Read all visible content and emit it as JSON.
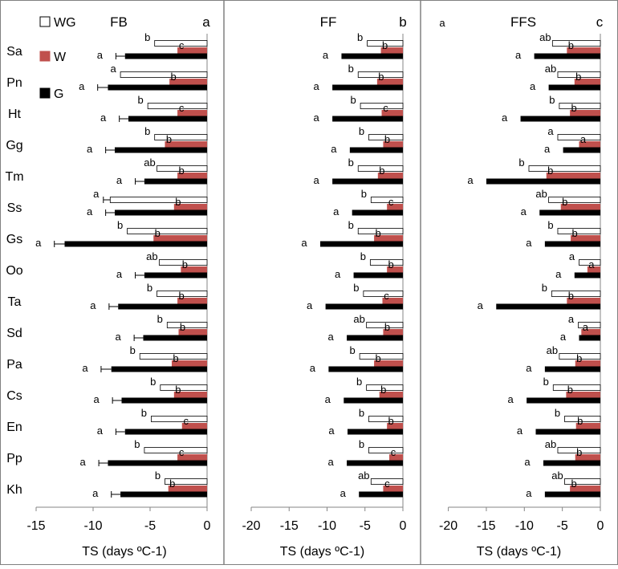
{
  "legend": [
    {
      "label": "WG",
      "color": "#ffffff"
    },
    {
      "label": "W",
      "color": "#c0504d"
    },
    {
      "label": "G",
      "color": "#000000"
    }
  ],
  "species": [
    "Sa",
    "Pn",
    "Ht",
    "Gg",
    "Tm",
    "Ss",
    "Gs",
    "Oo",
    "Ta",
    "Sd",
    "Pa",
    "Cs",
    "En",
    "Pp",
    "Kh"
  ],
  "colors": {
    "WG": "#ffffff",
    "W": "#c0504d",
    "G": "#000000",
    "frame": "#808080"
  },
  "chart_data": [
    {
      "type": "bar",
      "title": "FB",
      "panel_letter": "a",
      "xlabel": "TS (days ºC-1)",
      "xlim": [
        -15,
        0
      ],
      "xticks": [
        -15,
        -10,
        -5,
        0
      ],
      "categories": [
        "Sa",
        "Pn",
        "Ht",
        "Gg",
        "Tm",
        "Ss",
        "Gs",
        "Oo",
        "Ta",
        "Sd",
        "Pa",
        "Cs",
        "En",
        "Pp",
        "Kh"
      ],
      "series": [
        {
          "name": "WG",
          "values": [
            -4.6,
            -7.6,
            -5.2,
            -4.6,
            -4.4,
            -8.5,
            -7.0,
            -4.2,
            -4.4,
            -3.5,
            -5.9,
            -4.1,
            -4.9,
            -5.5,
            -3.7
          ]
        },
        {
          "name": "W",
          "values": [
            -2.6,
            -3.3,
            -2.6,
            -3.7,
            -2.6,
            -2.9,
            -4.7,
            -2.3,
            -2.6,
            -2.5,
            -3.1,
            -2.9,
            -2.2,
            -2.6,
            -3.4
          ]
        },
        {
          "name": "G",
          "values": [
            -7.2,
            -8.7,
            -6.9,
            -8.1,
            -5.5,
            -8.1,
            -12.5,
            -5.5,
            -7.8,
            -5.6,
            -8.4,
            -7.5,
            -7.2,
            -8.7,
            -7.6
          ]
        }
      ],
      "errors": {
        "WG": [
          0,
          0,
          0,
          0,
          0,
          0.6,
          0,
          0,
          0,
          0,
          0,
          0,
          0,
          0,
          0
        ],
        "W": [
          0,
          0,
          0,
          0,
          0,
          0,
          0,
          0,
          0,
          0,
          0,
          0,
          0,
          0,
          0
        ],
        "G": [
          0.8,
          0.9,
          0.8,
          0.8,
          0.8,
          0.8,
          0.9,
          0.8,
          0.8,
          0.8,
          0.9,
          0.8,
          0.8,
          0.8,
          0.8
        ]
      },
      "letters": {
        "WG": [
          "b",
          "a",
          "b",
          "b",
          "ab",
          "a",
          "b",
          "ab",
          "b",
          "b",
          "b",
          "b",
          "b",
          "b",
          "b"
        ],
        "W": [
          "c",
          "b",
          "c",
          "b",
          "b",
          "b",
          "b",
          "b",
          "b",
          "b",
          "b",
          "b",
          "c",
          "c",
          "b"
        ],
        "G": [
          "a",
          "a",
          "a",
          "a",
          "a",
          "a",
          "a",
          "a",
          "a",
          "a",
          "a",
          "a",
          "a",
          "a",
          "a"
        ]
      }
    },
    {
      "type": "bar",
      "title": "FF",
      "panel_letter": "b",
      "xlabel": "TS (days ºC-1)",
      "xlim": [
        -20,
        0
      ],
      "xticks": [
        -20,
        -15,
        -10,
        -5,
        0
      ],
      "categories": [
        "Sa",
        "Pn",
        "Ht",
        "Gg",
        "Tm",
        "Ss",
        "Gs",
        "Oo",
        "Ta",
        "Sd",
        "Pa",
        "Cs",
        "En",
        "Pp",
        "Kh"
      ],
      "series": [
        {
          "name": "WG",
          "values": [
            -4.7,
            -5.9,
            -5.6,
            -4.5,
            -5.9,
            -4.2,
            -5.9,
            -4.3,
            -5.2,
            -4.8,
            -5.7,
            -4.8,
            -4.5,
            -4.5,
            -4.2
          ]
        },
        {
          "name": "W",
          "values": [
            -2.9,
            -3.4,
            -2.8,
            -2.6,
            -3.3,
            -2.1,
            -3.8,
            -2.1,
            -2.7,
            -2.6,
            -3.8,
            -3.1,
            -2.1,
            -1.8,
            -2.6
          ]
        },
        {
          "name": "G",
          "values": [
            -8.1,
            -9.3,
            -9.3,
            -7.0,
            -9.3,
            -6.7,
            -10.9,
            -6.5,
            -10.2,
            -7.4,
            -9.8,
            -7.8,
            -7.3,
            -7.4,
            -5.8
          ]
        }
      ],
      "errors": {
        "WG": [
          0,
          0,
          0,
          0,
          0,
          0,
          0,
          0,
          0,
          0,
          0,
          0,
          0,
          0,
          0
        ],
        "W": [
          0,
          0,
          0,
          0,
          0,
          0,
          0,
          0,
          0,
          0,
          0,
          0,
          0,
          0,
          0
        ],
        "G": [
          0,
          0,
          0,
          0,
          0,
          0,
          0,
          0,
          0,
          0,
          0,
          0,
          0,
          0,
          0
        ]
      },
      "letters": {
        "WG": [
          "b",
          "b",
          "b",
          "b",
          "b",
          "b",
          "b",
          "b",
          "b",
          "ab",
          "b",
          "b",
          "b",
          "b",
          "ab"
        ],
        "W": [
          "b",
          "b",
          "c",
          "b",
          "b",
          "c",
          "b",
          "b",
          "c",
          "b",
          "b",
          "b",
          "b",
          "c",
          "c"
        ],
        "G": [
          "a",
          "a",
          "a",
          "a",
          "a",
          "a",
          "a",
          "a",
          "a",
          "a",
          "a",
          "a",
          "a",
          "a",
          "a"
        ]
      }
    },
    {
      "type": "bar",
      "title": "FFS",
      "panel_letter": "c",
      "extra_label": "a",
      "xlabel": "TS (days ºC-1)",
      "xlim": [
        -20,
        0
      ],
      "xticks": [
        -20,
        -15,
        -10,
        -5,
        0
      ],
      "categories": [
        "Sa",
        "Pn",
        "Ht",
        "Gg",
        "Tm",
        "Ss",
        "Gs",
        "Oo",
        "Ta",
        "Sd",
        "Pa",
        "Cs",
        "En",
        "Pp",
        "Kh"
      ],
      "series": [
        {
          "name": "WG",
          "values": [
            -6.3,
            -5.6,
            -5.4,
            -5.6,
            -9.4,
            -6.8,
            -5.6,
            -2.8,
            -6.4,
            -2.9,
            -5.4,
            -6.2,
            -4.7,
            -5.6,
            -4.7
          ]
        },
        {
          "name": "W",
          "values": [
            -4.4,
            -3.4,
            -4.0,
            -2.8,
            -7.1,
            -5.2,
            -3.9,
            -1.7,
            -4.4,
            -2.5,
            -3.3,
            -4.5,
            -3.2,
            -3.3,
            -4.0
          ]
        },
        {
          "name": "G",
          "values": [
            -8.7,
            -6.8,
            -10.5,
            -4.9,
            -15.0,
            -8.0,
            -7.3,
            -3.4,
            -13.7,
            -2.8,
            -7.3,
            -9.7,
            -8.5,
            -7.5,
            -7.3
          ]
        }
      ],
      "errors": {
        "WG": [
          0,
          0,
          0,
          0,
          0,
          0,
          0,
          0,
          0,
          0,
          0,
          0,
          0,
          0,
          0
        ],
        "W": [
          0,
          0,
          0,
          0,
          0,
          0,
          0,
          0,
          0,
          0,
          0,
          0,
          0,
          0,
          0
        ],
        "G": [
          0,
          0,
          0,
          0,
          0,
          0,
          0,
          0,
          0,
          0,
          0,
          0,
          0,
          0,
          0
        ]
      },
      "letters": {
        "WG": [
          "ab",
          "ab",
          "b",
          "a",
          "b",
          "ab",
          "b",
          "a",
          "b",
          "a",
          "ab",
          "b",
          "b",
          "ab",
          "ab"
        ],
        "W": [
          "b",
          "b",
          "b",
          "a",
          "b",
          "b",
          "b",
          "a",
          "b",
          "a",
          "b",
          "b",
          "b",
          "b",
          "b"
        ],
        "G": [
          "a",
          "a",
          "a",
          "a",
          "a",
          "a",
          "a",
          "a",
          "a",
          "a",
          "a",
          "a",
          "a",
          "a",
          "a"
        ]
      }
    }
  ]
}
